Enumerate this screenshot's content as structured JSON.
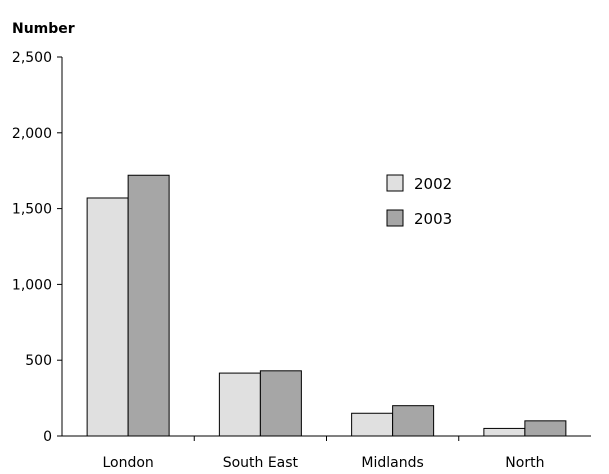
{
  "chart_data": {
    "type": "bar",
    "title": "",
    "xlabel": "",
    "ylabel": "Number",
    "categories": [
      "London",
      "South East",
      "Midlands",
      "North"
    ],
    "series": [
      {
        "name": "2002",
        "color": "#e0e0e0",
        "values": [
          1570,
          415,
          150,
          50
        ]
      },
      {
        "name": "2003",
        "color": "#a6a6a6",
        "values": [
          1720,
          430,
          200,
          100
        ]
      }
    ],
    "ylim": [
      0,
      2500
    ],
    "yticks": [
      {
        "value": 0,
        "label": "0"
      },
      {
        "value": 500,
        "label": "500"
      },
      {
        "value": 1000,
        "label": "1,000"
      },
      {
        "value": 1500,
        "label": "1,500"
      },
      {
        "value": 2000,
        "label": "2,000"
      },
      {
        "value": 2500,
        "label": "2,500"
      }
    ],
    "grid": false,
    "legend": "right"
  }
}
